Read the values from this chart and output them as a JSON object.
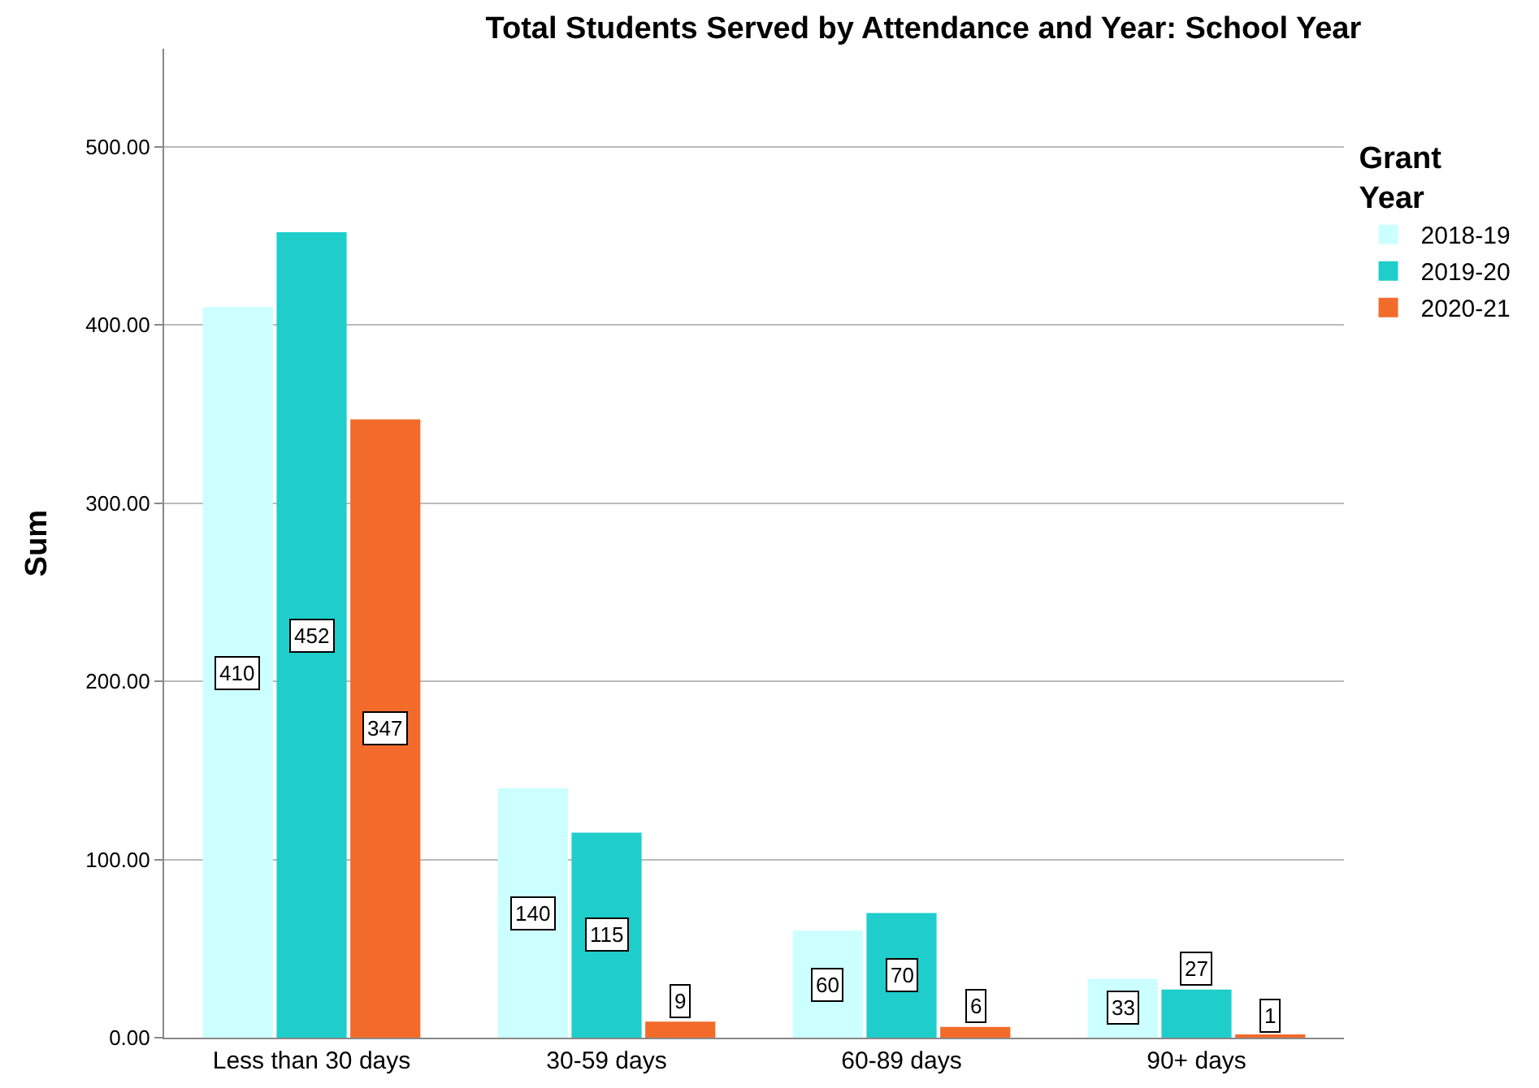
{
  "chart_data": {
    "type": "bar",
    "title": "Total Students Served by Attendance and Year: School Year",
    "ylabel": "Sum",
    "legend_title": "Grant Year",
    "categories": [
      "Less than 30 days",
      "30-59 days",
      "60-89 days",
      "90+ days"
    ],
    "series": [
      {
        "name": "2018-19",
        "color": "#ccffff",
        "values": [
          410,
          140,
          60,
          33
        ]
      },
      {
        "name": "2019-20",
        "color": "#1fcecb",
        "values": [
          452,
          115,
          70,
          27
        ]
      },
      {
        "name": "2020-21",
        "color": "#f26b2b",
        "values": [
          347,
          9,
          6,
          1
        ]
      }
    ],
    "ylim": [
      0,
      555
    ],
    "yticks": [
      {
        "value": 0,
        "label": "0.00"
      },
      {
        "value": 100,
        "label": "100.00"
      },
      {
        "value": 200,
        "label": "200.00"
      },
      {
        "value": 300,
        "label": "300.00"
      },
      {
        "value": 400,
        "label": "400.00"
      },
      {
        "value": 500,
        "label": "500.00"
      }
    ],
    "grid": "y",
    "legend": "top right",
    "data_labels": true
  }
}
